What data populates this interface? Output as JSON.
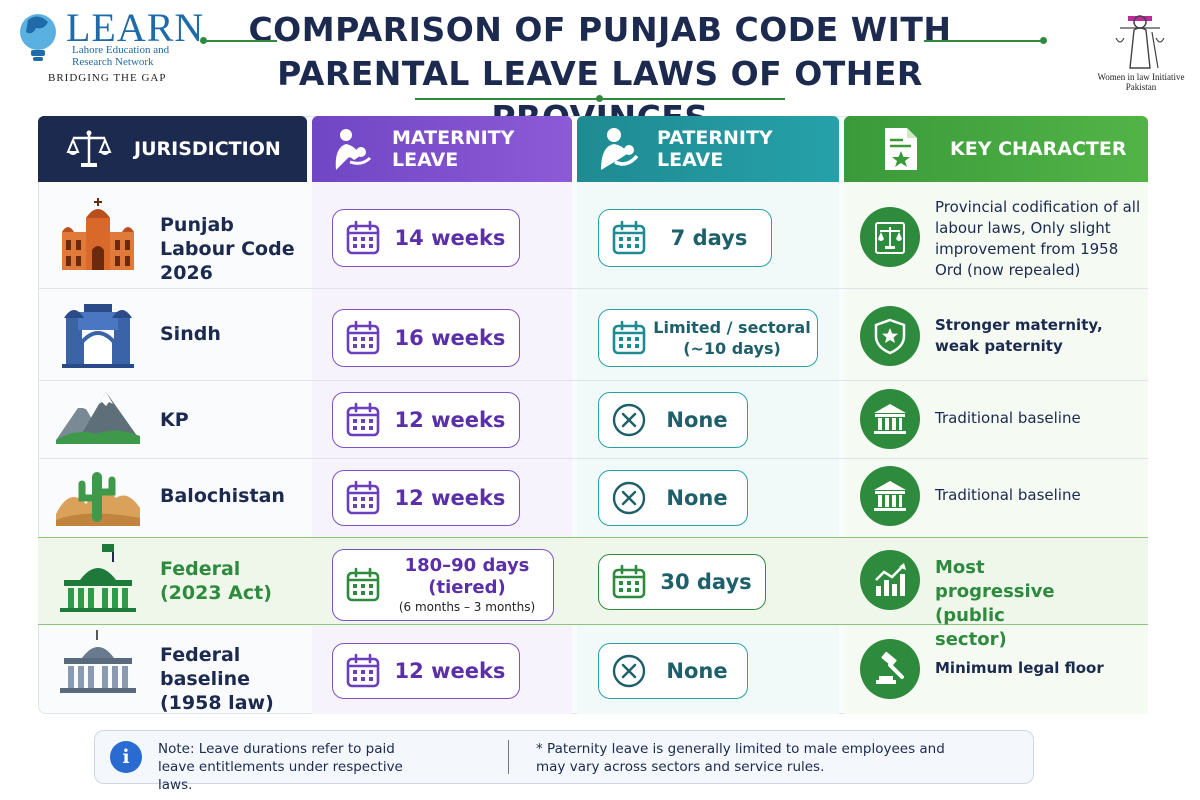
{
  "header": {
    "title_line1": "COMPARISON OF PUNJAB CODE WITH",
    "title_line2": "PARENTAL LEAVE LAWS OF OTHER PROVINCES",
    "left_logo": {
      "word": "LEARN",
      "sub": "Lahore Education and Research Network",
      "tagline": "BRIDGING THE GAP"
    },
    "right_logo": {
      "text": "Women in law Initiative Pakistan"
    }
  },
  "columns": [
    {
      "label": "JURISDICTION",
      "icon": "scales-icon"
    },
    {
      "label": "MATERNITY LEAVE",
      "icon": "mother-child-icon"
    },
    {
      "label": "PATERNITY LEAVE",
      "icon": "father-child-icon"
    },
    {
      "label": "KEY CHARACTER",
      "icon": "document-star-icon"
    }
  ],
  "rows": [
    {
      "jurisdiction": "Punjab Labour Code 2026",
      "maternity": "14 weeks",
      "paternity": "7 days",
      "key": "Provincial codification of all labour laws, Only slight improvement from 1958 Ord (now repealed)",
      "key_icon": "scales-icon"
    },
    {
      "jurisdiction": "Sindh",
      "maternity": "16 weeks",
      "paternity": "Limited / sectoral (~10 days)",
      "key": "Stronger maternity, weak paternity",
      "key_icon": "shield-star-icon"
    },
    {
      "jurisdiction": "KP",
      "maternity": "12 weeks",
      "paternity": "None",
      "key": "Traditional baseline",
      "key_icon": "building-icon"
    },
    {
      "jurisdiction": "Balochistan",
      "maternity": "12 weeks",
      "paternity": "None",
      "key": "Traditional baseline",
      "key_icon": "building-icon"
    },
    {
      "jurisdiction": "Federal (2023 Act)",
      "maternity": "180–90 days (tiered)",
      "maternity_sub": "(6 months – 3 months)",
      "paternity": "30 days",
      "key": "Most progressive (public sector)",
      "key_icon": "growth-chart-icon"
    },
    {
      "jurisdiction": "Federal baseline (1958 law)",
      "maternity": "12 weeks",
      "paternity": "None",
      "key": "Minimum legal floor",
      "key_icon": "gavel-icon"
    }
  ],
  "notes": {
    "left": "Note: Leave durations refer to paid leave entitlements under respective laws.",
    "right": "* Paternity leave is generally limited to male employees and may vary across sectors and service rules."
  },
  "colors": {
    "navy": "#1b2a4e",
    "purple": "#7c52c8",
    "teal": "#26a1a9",
    "green": "#2e8b3e",
    "info_blue": "#2a6bd1"
  }
}
